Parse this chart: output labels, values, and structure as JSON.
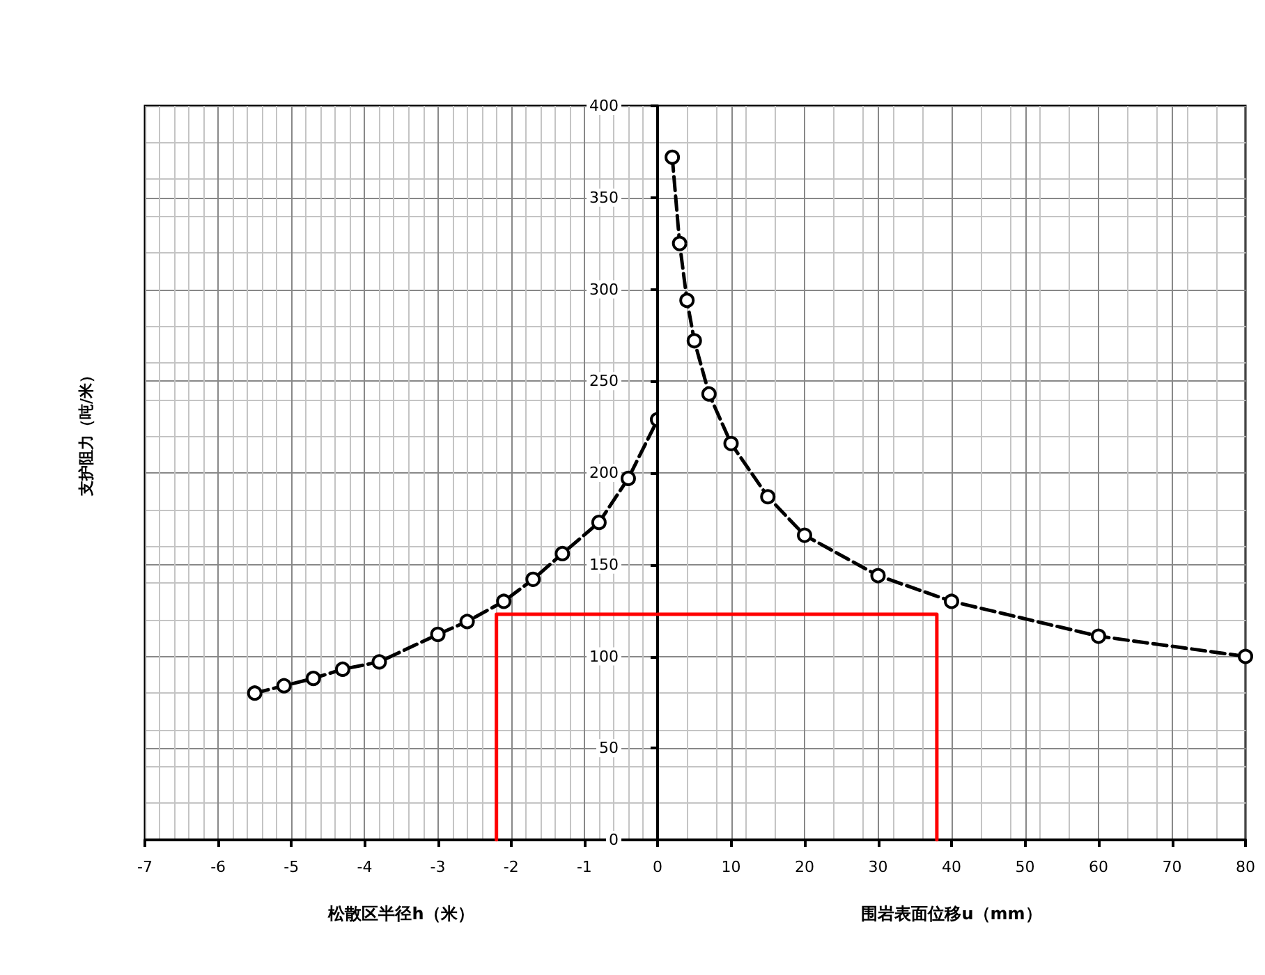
{
  "chart_data": [
    {
      "type": "line",
      "xlabel": "松散区半径h（米）",
      "ylabel": "支护阻力（吨/米）",
      "xlim": [
        -7,
        0
      ],
      "xticks": [
        -7,
        -6,
        -5,
        -4,
        -3,
        -2,
        -1
      ],
      "ylim": [
        0,
        400
      ],
      "yticks": [
        0,
        50,
        100,
        150,
        200,
        250,
        300,
        350,
        400
      ],
      "grid": true,
      "series": [
        {
          "color": "#000000",
          "line_style": "dashed",
          "marker": "circle",
          "x": [
            -5.5,
            -5.1,
            -4.7,
            -4.3,
            -3.8,
            -3.0,
            -2.6,
            -2.1,
            -1.7,
            -1.3,
            -0.8,
            -0.4,
            0
          ],
          "values": [
            80,
            84,
            88,
            93,
            97,
            112,
            119,
            130,
            142,
            156,
            173,
            197,
            229
          ]
        },
        {
          "color": "#ff0000",
          "line_style": "solid",
          "marker": "none",
          "x": [
            -2.2,
            -2.2,
            0
          ],
          "values": [
            0,
            123,
            123
          ]
        }
      ]
    },
    {
      "type": "line",
      "xlabel": "围岩表面位移u（mm）",
      "xlim": [
        0,
        80
      ],
      "xticks": [
        0,
        10,
        20,
        30,
        40,
        50,
        60,
        70,
        80
      ],
      "ylim": [
        0,
        400
      ],
      "yticks": [
        0,
        50,
        100,
        150,
        200,
        250,
        300,
        350,
        400
      ],
      "tick_labels": "x",
      "grid": true,
      "series": [
        {
          "color": "#000000",
          "line_style": "dashed",
          "marker": "circle",
          "x": [
            2,
            3,
            4,
            5,
            7,
            10,
            15,
            20,
            30,
            40,
            60,
            80
          ],
          "values": [
            372,
            325,
            294,
            272,
            243,
            216,
            187,
            166,
            144,
            130,
            111,
            100
          ]
        },
        {
          "color": "#ff0000",
          "line_style": "solid",
          "marker": "none",
          "x": [
            0,
            38,
            38
          ],
          "values": [
            123,
            123,
            0
          ]
        }
      ]
    }
  ]
}
